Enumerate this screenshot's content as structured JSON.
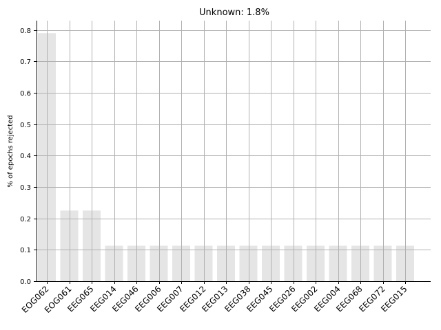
{
  "chart_data": {
    "type": "bar",
    "title": "Unknown: 1.8%",
    "xlabel": "",
    "ylabel": "% of epochs rejected",
    "categories": [
      "EOG062",
      "EOG061",
      "EEG065",
      "EEG014",
      "EEG046",
      "EEG006",
      "EEG007",
      "EEG012",
      "EEG013",
      "EEG038",
      "EEG045",
      "EEG026",
      "EEG002",
      "EEG004",
      "EEG068",
      "EEG072",
      "EEG015"
    ],
    "values": [
      0.79,
      0.225,
      0.225,
      0.113,
      0.113,
      0.113,
      0.113,
      0.113,
      0.113,
      0.113,
      0.113,
      0.113,
      0.113,
      0.113,
      0.113,
      0.113,
      0.113
    ],
    "ylim": [
      0,
      0.83
    ],
    "yticks": [
      "0.0",
      "0.1",
      "0.2",
      "0.3",
      "0.4",
      "0.5",
      "0.6",
      "0.7",
      "0.8"
    ],
    "grid": true,
    "bar_color": "#e5e5e5",
    "grid_color": "#b0b0b0"
  }
}
